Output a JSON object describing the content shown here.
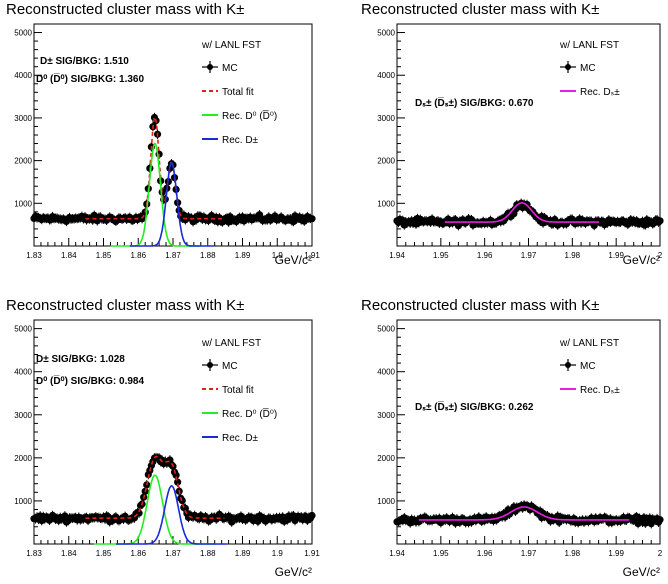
{
  "figure": {
    "background": "#ffffff",
    "series_colors": {
      "mc": "#000000",
      "total_fit": "#e0241a",
      "rec_d0": "#22ee22",
      "rec_dpm": "#1a2ad8",
      "rec_ds": "#e81ee0"
    }
  },
  "chart_data": [
    {
      "id": "p1",
      "type": "scatter",
      "title": "Reconstructed cluster mass with K±",
      "xlabel": "GeV/c²",
      "xlim": [
        1.83,
        1.91
      ],
      "ylim": [
        0,
        5200
      ],
      "xticks": [
        "1.83",
        "1.84",
        "1.85",
        "1.86",
        "1.87",
        "1.88",
        "1.89",
        "1.9",
        "1.91"
      ],
      "yticks": [
        "1000",
        "2000",
        "3000",
        "4000",
        "5000"
      ],
      "annotations": [
        "D± SIG/BKG: 1.510",
        "D⁰ (D̅⁰) SIG/BKG: 1.360"
      ],
      "legend_title": "w/ LANL FST",
      "legend": [
        "MC",
        "Total fit",
        "Rec. D⁰ (D̅⁰)",
        "Rec. D±"
      ],
      "baseline": 640,
      "peaks": [
        {
          "x": 1.8648,
          "sigma": 0.0012,
          "amp": 2380
        },
        {
          "x": 1.8696,
          "sigma": 0.0011,
          "amp": 1330
        }
      ],
      "component_peaks": [
        {
          "name": "Rec. D⁰ (D̅⁰)",
          "x": 1.8648,
          "sigma": 0.0016,
          "amp": 2400,
          "color": "rec_d0"
        },
        {
          "name": "Rec. D±",
          "x": 1.8696,
          "sigma": 0.0015,
          "amp": 1950,
          "color": "rec_dpm"
        }
      ]
    },
    {
      "id": "p2",
      "type": "scatter",
      "title": "Reconstructed cluster mass with K±",
      "xlabel": "GeV/c²",
      "xlim": [
        1.94,
        2.0
      ],
      "ylim": [
        0,
        5200
      ],
      "xticks": [
        "1.94",
        "1.95",
        "1.96",
        "1.97",
        "1.98",
        "1.99",
        "2"
      ],
      "yticks": [
        "1000",
        "2000",
        "3000",
        "4000",
        "5000"
      ],
      "annotations": [
        "Dₛ± (D̅ₛ±) SIG/BKG: 0.670"
      ],
      "legend_title": "w/ LANL FST",
      "legend": [
        "MC",
        "Rec. Dₛ±"
      ],
      "baseline": 560,
      "peaks": [
        {
          "x": 1.9685,
          "sigma": 0.0022,
          "amp": 420
        }
      ],
      "component_peaks": [
        {
          "name": "Rec. Dₛ±",
          "x": 1.9685,
          "sigma": 0.0022,
          "amp": 450,
          "color": "rec_ds"
        }
      ]
    },
    {
      "id": "p3",
      "type": "scatter",
      "title": "Reconstructed cluster mass with K±",
      "xlabel": "GeV/c²",
      "xlim": [
        1.83,
        1.91
      ],
      "ylim": [
        0,
        5200
      ],
      "xticks": [
        "1.83",
        "1.84",
        "1.85",
        "1.86",
        "1.87",
        "1.88",
        "1.89",
        "1.9",
        "1.91"
      ],
      "yticks": [
        "1000",
        "2000",
        "3000",
        "4000",
        "5000"
      ],
      "annotations": [
        "D± SIG/BKG: 1.028",
        "D⁰ (D̅⁰) SIG/BKG: 0.984"
      ],
      "legend_title": "w/ LANL FST",
      "legend": [
        "MC",
        "Total fit",
        "Rec. D⁰ (D̅⁰)",
        "Rec. D±"
      ],
      "baseline": 600,
      "peaks": [
        {
          "x": 1.8648,
          "sigma": 0.0022,
          "amp": 1350
        },
        {
          "x": 1.8696,
          "sigma": 0.002,
          "amp": 1150
        }
      ],
      "component_peaks": [
        {
          "name": "Rec. D⁰ (D̅⁰)",
          "x": 1.8648,
          "sigma": 0.0022,
          "amp": 1600,
          "color": "rec_d0"
        },
        {
          "name": "Rec. D±",
          "x": 1.8696,
          "sigma": 0.002,
          "amp": 1350,
          "color": "rec_dpm"
        }
      ]
    },
    {
      "id": "p4",
      "type": "scatter",
      "title": "Reconstructed cluster mass with K±",
      "xlabel": "GeV/c²",
      "xlim": [
        1.94,
        2.0
      ],
      "ylim": [
        0,
        5200
      ],
      "xticks": [
        "1.94",
        "1.95",
        "1.96",
        "1.97",
        "1.98",
        "1.99",
        "2"
      ],
      "yticks": [
        "1000",
        "2000",
        "3000",
        "4000",
        "5000"
      ],
      "annotations": [
        "Dₛ± (D̅ₛ±) SIG/BKG: 0.262"
      ],
      "legend_title": "w/ LANL FST",
      "legend": [
        "MC",
        "Rec. Dₛ±"
      ],
      "baseline": 560,
      "peaks": [
        {
          "x": 1.969,
          "sigma": 0.003,
          "amp": 330
        }
      ],
      "component_peaks": [
        {
          "name": "Rec. Dₛ±",
          "x": 1.969,
          "sigma": 0.003,
          "amp": 300,
          "color": "rec_ds"
        }
      ]
    }
  ]
}
